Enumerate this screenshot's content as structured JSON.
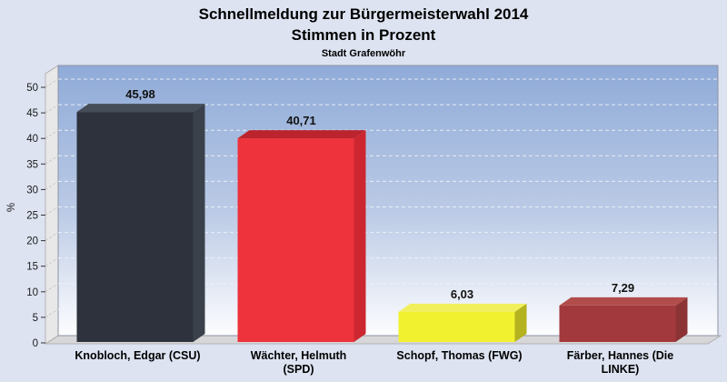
{
  "header": {
    "title_line1": "Schnellmeldung zur Bürgermeisterwahl 2014",
    "title_line2": "Stimmen in Prozent",
    "subtitle": "Stadt Grafenwöhr"
  },
  "chart_data": {
    "type": "bar",
    "style": "3d-column",
    "title": "Schnellmeldung zur Bürgermeisterwahl 2014",
    "subtitle": "Stimmen in Prozent",
    "caption": "Stadt Grafenwöhr",
    "xlabel": "",
    "ylabel": "%",
    "ylim": [
      0,
      54
    ],
    "ytick_step": 5,
    "yticks": [
      0,
      5,
      10,
      15,
      20,
      25,
      30,
      35,
      40,
      45,
      50
    ],
    "grid": "horizontal-dashed",
    "legend": "none",
    "categories": [
      "Knobloch, Edgar (CSU)",
      "Wächter, Helmuth (SPD)",
      "Schopf, Thomas (FWG)",
      "Färber, Hannes (Die LINKE)"
    ],
    "category_label_lines": [
      [
        "Knobloch, Edgar (CSU)"
      ],
      [
        "Wächter, Helmuth",
        "(SPD)"
      ],
      [
        "Schopf, Thomas (FWG)"
      ],
      [
        "Färber, Hannes (Die",
        "LINKE)"
      ]
    ],
    "values": [
      45.98,
      40.71,
      6.03,
      7.29
    ],
    "value_labels": [
      "45,98",
      "40,71",
      "6,03",
      "7,29"
    ],
    "bars": [
      {
        "party": "CSU",
        "front": "#2d323c",
        "top": "#454d59",
        "side": "#3a414b"
      },
      {
        "party": "SPD",
        "front": "#ee333c",
        "top": "#bb242d",
        "side": "#cc2730"
      },
      {
        "party": "FWG",
        "front": "#f2f12f",
        "top": "#f2ef5c",
        "side": "#b4b21e"
      },
      {
        "party": "Die LINKE",
        "front": "#a23a3d",
        "top": "#b14c4b",
        "side": "#8c3335"
      }
    ],
    "colors": {
      "page_bg": "#dde3f1",
      "plot_border": "#8d93a3",
      "wall_fill": "#e8e8e8",
      "wall_edge": "#a8a8a8",
      "floor_fill": "#d7d7d9",
      "bg_gradient_top": "#8fabd8",
      "bg_gradient_mid": "#bccbe6",
      "bg_gradient_bottom": "#fdfdff",
      "grid_line": "#f0f2f7",
      "grid_line_wall": "#c9c9c9",
      "tick_color": "#333333",
      "tick_text": "#1a1a1a",
      "value_text": "#111111",
      "category_text": "#000000"
    }
  }
}
